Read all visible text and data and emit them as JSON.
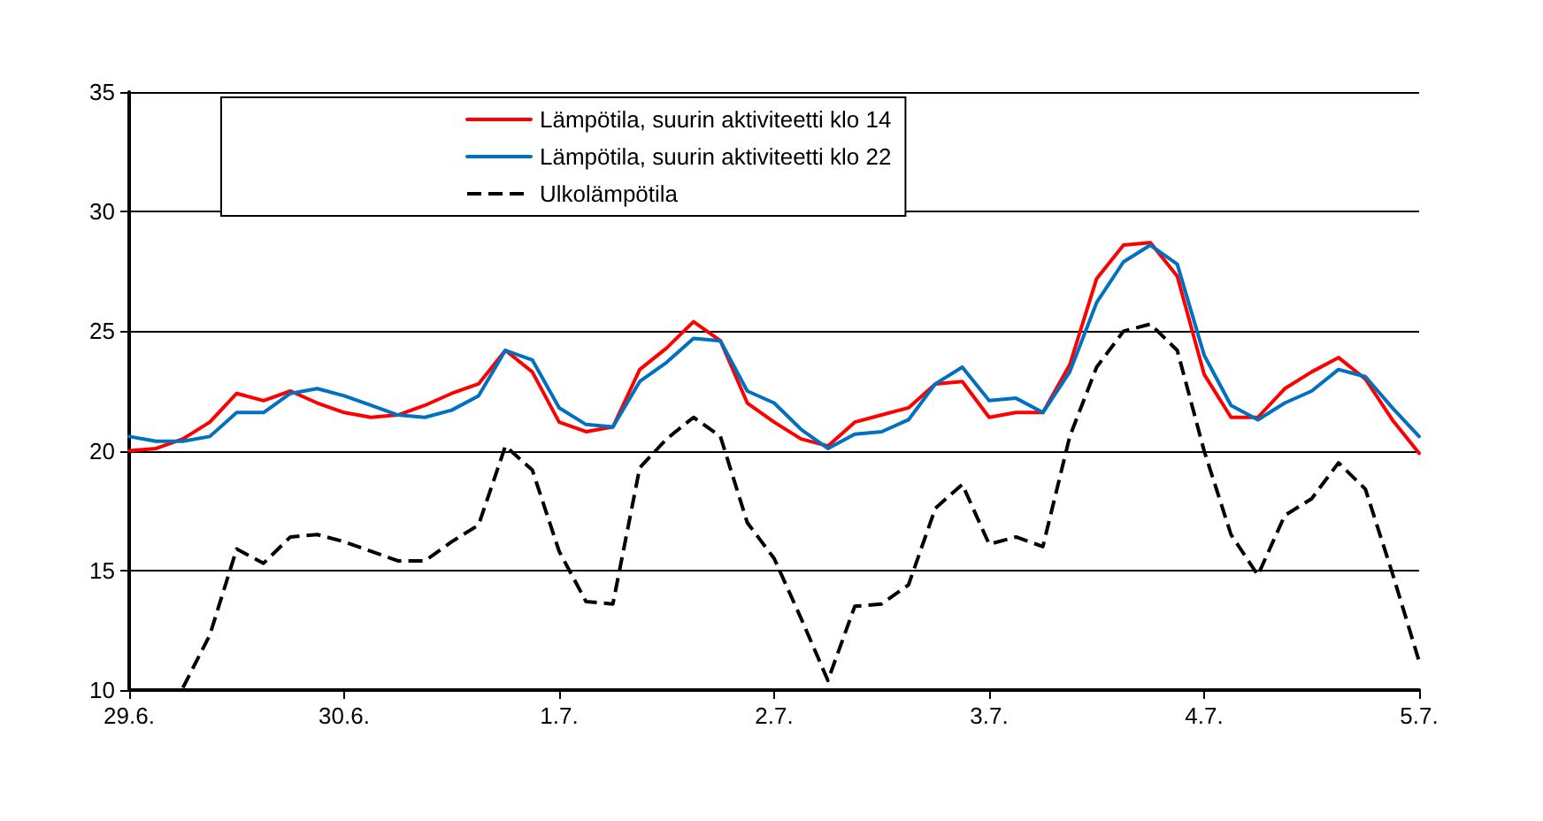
{
  "chart_data": {
    "type": "line",
    "categories": [
      "29.6.",
      null,
      null,
      null,
      null,
      null,
      null,
      null,
      "30.6.",
      null,
      null,
      null,
      null,
      null,
      null,
      null,
      "1.7.",
      null,
      null,
      null,
      null,
      null,
      null,
      null,
      "2.7.",
      null,
      null,
      null,
      null,
      null,
      null,
      null,
      "3.7.",
      null,
      null,
      null,
      null,
      null,
      null,
      null,
      "4.7.",
      null,
      null,
      null,
      null,
      null,
      null,
      null,
      "5.7."
    ],
    "series": [
      {
        "name": "Lämpötila, suurin aktiviteetti klo 14",
        "color": "#ff0000",
        "line_style": "solid",
        "values": [
          20.0,
          20.1,
          20.5,
          21.2,
          22.4,
          22.1,
          22.5,
          22.0,
          21.6,
          21.4,
          21.5,
          21.9,
          22.4,
          22.8,
          24.2,
          23.3,
          21.2,
          20.8,
          21.0,
          23.4,
          24.3,
          25.4,
          24.6,
          22.0,
          21.2,
          20.5,
          20.2,
          21.2,
          21.5,
          21.8,
          22.8,
          22.9,
          21.4,
          21.6,
          21.6,
          23.6,
          27.2,
          28.6,
          28.7,
          27.3,
          23.2,
          21.4,
          21.4,
          22.6,
          23.3,
          23.9,
          23.0,
          21.3,
          19.9
        ]
      },
      {
        "name": "Lämpötila, suurin aktiviteetti klo 22",
        "color": "#0070c0",
        "line_style": "solid",
        "values": [
          20.6,
          20.4,
          20.4,
          20.6,
          21.6,
          21.6,
          22.4,
          22.6,
          22.3,
          21.9,
          21.5,
          21.4,
          21.7,
          22.3,
          24.2,
          23.8,
          21.8,
          21.1,
          21.0,
          22.9,
          23.7,
          24.7,
          24.6,
          22.5,
          22.0,
          20.9,
          20.1,
          20.7,
          20.8,
          21.3,
          22.8,
          23.5,
          22.1,
          22.2,
          21.6,
          23.3,
          26.2,
          27.9,
          28.6,
          27.8,
          24.0,
          21.9,
          21.3,
          22.0,
          22.5,
          23.4,
          23.1,
          21.8,
          20.6
        ]
      },
      {
        "name": "Ulkolämpötila",
        "color": "#000000",
        "line_style": "dashed",
        "values": [
          null,
          null,
          10.1,
          12.3,
          15.9,
          15.3,
          16.4,
          16.5,
          16.2,
          15.8,
          15.4,
          15.4,
          16.2,
          16.9,
          20.2,
          19.2,
          15.8,
          13.7,
          13.6,
          19.3,
          20.5,
          21.4,
          20.6,
          17.0,
          15.5,
          13.0,
          10.4,
          13.5,
          13.6,
          14.4,
          17.6,
          18.6,
          16.1,
          16.4,
          16.0,
          20.6,
          23.5,
          25.0,
          25.3,
          24.2,
          20.0,
          16.5,
          14.8,
          17.3,
          18.0,
          19.5,
          18.4,
          14.9,
          11.2
        ]
      }
    ],
    "ylim": [
      10,
      35
    ],
    "yticks": [
      10,
      15,
      20,
      25,
      30,
      35
    ],
    "grid": "y",
    "legend": "top",
    "marker": "none"
  }
}
